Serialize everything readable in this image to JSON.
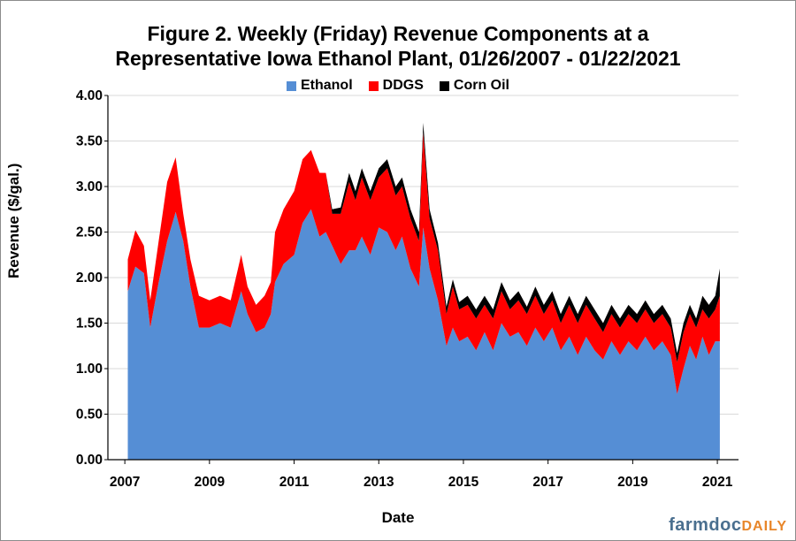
{
  "title_line1": "Figure 2. Weekly (Friday) Revenue Components at a",
  "title_line2": "Representative Iowa Ethanol Plant, 01/26/2007 - 01/22/2021",
  "brand": {
    "main": "farmdoc",
    "sub": "DAILY"
  },
  "chart_data": {
    "type": "area",
    "stacked": true,
    "title": "Figure 2. Weekly (Friday) Revenue Components at a Representative Iowa Ethanol Plant, 01/26/2007 - 01/22/2021",
    "xlabel": "Date",
    "ylabel": "Revenue ($/gal.)",
    "ylim": [
      0,
      4
    ],
    "xlim": [
      2006.6,
      2021.5
    ],
    "x_ticks": [
      2007,
      2009,
      2011,
      2013,
      2015,
      2017,
      2019,
      2021
    ],
    "y_ticks": [
      "0.00",
      "0.50",
      "1.00",
      "1.50",
      "2.00",
      "2.50",
      "3.00",
      "3.50",
      "4.00"
    ],
    "grid": "horizontal",
    "legend": "top-center",
    "colors": {
      "Ethanol": "#558ed5",
      "DDGS": "#ff0000",
      "Corn Oil": "#000000"
    },
    "x": [
      2007.07,
      2007.25,
      2007.45,
      2007.6,
      2007.8,
      2008.0,
      2008.2,
      2008.38,
      2008.55,
      2008.75,
      2009.0,
      2009.25,
      2009.5,
      2009.75,
      2009.9,
      2010.1,
      2010.3,
      2010.45,
      2010.55,
      2010.75,
      2011.0,
      2011.2,
      2011.4,
      2011.6,
      2011.75,
      2011.9,
      2012.1,
      2012.3,
      2012.45,
      2012.6,
      2012.8,
      2013.0,
      2013.2,
      2013.4,
      2013.55,
      2013.75,
      2013.95,
      2014.05,
      2014.2,
      2014.4,
      2014.6,
      2014.75,
      2014.9,
      2015.1,
      2015.3,
      2015.5,
      2015.7,
      2015.9,
      2016.1,
      2016.3,
      2016.5,
      2016.7,
      2016.9,
      2017.1,
      2017.3,
      2017.5,
      2017.7,
      2017.9,
      2018.1,
      2018.3,
      2018.5,
      2018.7,
      2018.9,
      2019.1,
      2019.3,
      2019.5,
      2019.7,
      2019.9,
      2020.05,
      2020.2,
      2020.35,
      2020.5,
      2020.65,
      2020.8,
      2020.95,
      2021.06
    ],
    "series": [
      {
        "name": "Ethanol",
        "values": [
          1.85,
          2.12,
          2.05,
          1.45,
          1.95,
          2.4,
          2.72,
          2.4,
          1.9,
          1.45,
          1.45,
          1.5,
          1.45,
          1.85,
          1.6,
          1.4,
          1.45,
          1.6,
          1.95,
          2.15,
          2.25,
          2.6,
          2.75,
          2.45,
          2.5,
          2.35,
          2.15,
          2.3,
          2.3,
          2.45,
          2.25,
          2.55,
          2.5,
          2.3,
          2.45,
          2.1,
          1.9,
          2.55,
          2.1,
          1.75,
          1.25,
          1.45,
          1.3,
          1.35,
          1.2,
          1.4,
          1.2,
          1.5,
          1.35,
          1.4,
          1.25,
          1.45,
          1.3,
          1.45,
          1.2,
          1.35,
          1.15,
          1.35,
          1.2,
          1.1,
          1.3,
          1.15,
          1.3,
          1.2,
          1.35,
          1.2,
          1.3,
          1.15,
          0.72,
          1.0,
          1.25,
          1.1,
          1.35,
          1.15,
          1.3,
          1.3
        ]
      },
      {
        "name": "DDGS",
        "values": [
          0.35,
          0.4,
          0.3,
          0.3,
          0.45,
          0.65,
          0.6,
          0.3,
          0.3,
          0.35,
          0.3,
          0.3,
          0.3,
          0.4,
          0.3,
          0.3,
          0.35,
          0.35,
          0.55,
          0.6,
          0.7,
          0.7,
          0.65,
          0.7,
          0.65,
          0.35,
          0.55,
          0.75,
          0.55,
          0.65,
          0.6,
          0.55,
          0.7,
          0.6,
          0.55,
          0.55,
          0.5,
          1.05,
          0.55,
          0.55,
          0.35,
          0.45,
          0.35,
          0.35,
          0.35,
          0.3,
          0.35,
          0.35,
          0.3,
          0.35,
          0.35,
          0.35,
          0.3,
          0.3,
          0.3,
          0.35,
          0.35,
          0.35,
          0.35,
          0.3,
          0.3,
          0.3,
          0.3,
          0.3,
          0.3,
          0.3,
          0.3,
          0.3,
          0.35,
          0.4,
          0.35,
          0.35,
          0.3,
          0.4,
          0.35,
          0.5
        ]
      },
      {
        "name": "Corn Oil",
        "values": [
          0,
          0,
          0,
          0,
          0,
          0,
          0,
          0,
          0,
          0,
          0,
          0,
          0,
          0,
          0,
          0,
          0,
          0,
          0,
          0,
          0,
          0,
          0,
          0,
          0,
          0.05,
          0.07,
          0.1,
          0.1,
          0.1,
          0.1,
          0.1,
          0.1,
          0.1,
          0.1,
          0.1,
          0.1,
          0.1,
          0.1,
          0.08,
          0.08,
          0.08,
          0.08,
          0.1,
          0.1,
          0.1,
          0.1,
          0.1,
          0.1,
          0.1,
          0.08,
          0.1,
          0.1,
          0.1,
          0.1,
          0.1,
          0.1,
          0.1,
          0.1,
          0.1,
          0.1,
          0.1,
          0.1,
          0.1,
          0.1,
          0.1,
          0.1,
          0.1,
          0.1,
          0.1,
          0.1,
          0.1,
          0.15,
          0.15,
          0.15,
          0.3
        ]
      }
    ]
  }
}
